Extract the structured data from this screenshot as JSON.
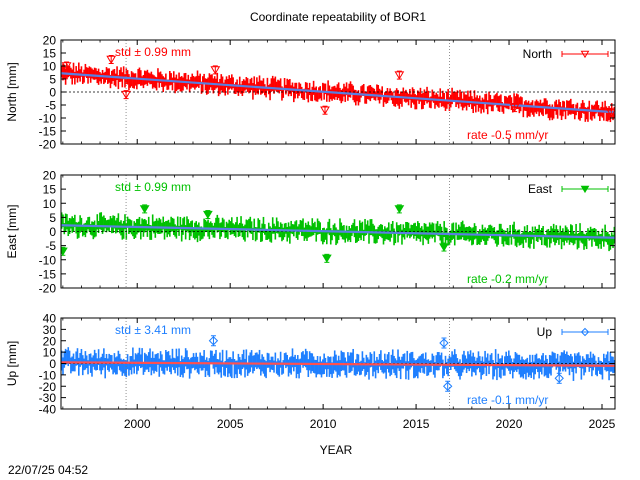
{
  "title": "Coordinate repeatability of BOR1",
  "xlabel": "YEAR",
  "timestamp": "22/07/25 04:52",
  "xlim": [
    1995.9,
    2025.7
  ],
  "xticks": [
    2000,
    2005,
    2010,
    2015,
    2020,
    2025
  ],
  "xtick_labels": [
    "2000",
    "2005",
    "2010",
    "2015",
    "2020",
    "2025"
  ],
  "vlines": [
    1999.4,
    2016.8
  ],
  "grid": false,
  "chart_data": [
    {
      "type": "scatter",
      "panel": "north",
      "series_name": "North",
      "ylabel": "North [mm]",
      "ylim": [
        -20,
        20
      ],
      "yticks": [
        -20,
        -15,
        -10,
        -5,
        0,
        5,
        10,
        15,
        20
      ],
      "ytick_labels": [
        "-20",
        "-15",
        "-10",
        "-5",
        "0",
        "5",
        "10",
        "15",
        "20"
      ],
      "color": "#ff0000",
      "trend_color": "#5a7fe0",
      "marker": "triangle-down-open",
      "std_label": "std ± 0.99 mm",
      "rate_label": "rate -0.5 mm/yr",
      "trend": {
        "x": [
          1995.9,
          2025.7
        ],
        "y": [
          7.2,
          -7.8
        ]
      },
      "x": [
        1996.2,
        1998.6,
        1999.4,
        2004.2,
        2010.1,
        2014.1,
        2020.3,
        2025.5
      ],
      "y": [
        10.0,
        12.5,
        -1.0,
        8.5,
        -7.0,
        6.5,
        -6.0,
        -8.0
      ]
    },
    {
      "type": "scatter",
      "panel": "east",
      "series_name": "East",
      "ylabel": "East [mm]",
      "ylim": [
        -20,
        20
      ],
      "yticks": [
        -20,
        -15,
        -10,
        -5,
        0,
        5,
        10,
        15,
        20
      ],
      "ytick_labels": [
        "-20",
        "-15",
        "-10",
        "-5",
        "0",
        "5",
        "10",
        "15",
        "20"
      ],
      "color": "#00c000",
      "trend_color": "#5a7fe0",
      "marker": "triangle-down-filled",
      "std_label": "std ± 0.99 mm",
      "rate_label": "rate -0.2 mm/yr",
      "trend": {
        "x": [
          1995.9,
          2025.7
        ],
        "y": [
          2.2,
          -2.2
        ]
      },
      "x": [
        1996.0,
        2000.4,
        2003.8,
        2010.2,
        2014.1,
        2016.5
      ],
      "y": [
        -7.0,
        8.0,
        6.0,
        -9.5,
        8.0,
        -5.5
      ]
    },
    {
      "type": "scatter",
      "panel": "up",
      "series_name": "Up",
      "ylabel": "Up [mm]",
      "ylim": [
        -40,
        40
      ],
      "yticks": [
        -40,
        -30,
        -20,
        -10,
        0,
        10,
        20,
        30,
        40
      ],
      "ytick_labels": [
        "-40",
        "-30",
        "-20",
        "-10",
        "0",
        "10",
        "20",
        "30",
        "40"
      ],
      "color": "#1e7fff",
      "trend_color": "#ff5050",
      "marker": "diamond-open",
      "std_label": "std ± 3.41 mm",
      "rate_label": "rate -0.1 mm/yr",
      "trend": {
        "x": [
          1995.9,
          2025.7
        ],
        "y": [
          1.0,
          -2.0
        ]
      },
      "x": [
        2004.1,
        2016.5,
        2016.7,
        2022.7
      ],
      "y": [
        20.0,
        18.0,
        -20.0,
        -13.0
      ]
    }
  ]
}
